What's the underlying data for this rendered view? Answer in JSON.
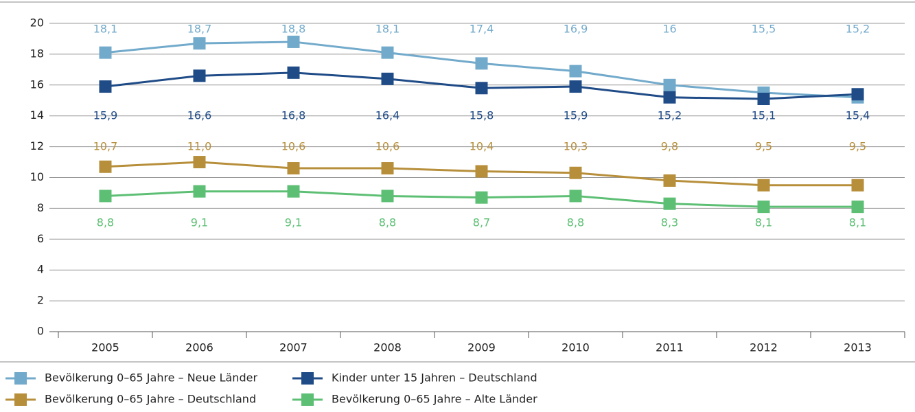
{
  "chart_data": {
    "type": "line",
    "categories": [
      "2005",
      "2006",
      "2007",
      "2008",
      "2009",
      "2010",
      "2011",
      "2012",
      "2013"
    ],
    "series": [
      {
        "name": "Bevölkerung 0–65 Jahre – Neue Länder",
        "color": "#72aacb",
        "values": [
          18.1,
          18.7,
          18.8,
          18.1,
          17.4,
          16.9,
          16,
          15.5,
          15.2
        ],
        "value_labels": [
          "18,1",
          "18,7",
          "18,8",
          "18,1",
          "17,4",
          "16,9",
          "16",
          "15,5",
          "15,2"
        ]
      },
      {
        "name": "Kinder unter 15 Jahren – Deutschland",
        "color": "#1f4b87",
        "values": [
          15.9,
          16.6,
          16.8,
          16.4,
          15.8,
          15.9,
          15.2,
          15.1,
          15.4
        ],
        "value_labels": [
          "15,9",
          "16,6",
          "16,8",
          "16,4",
          "15,8",
          "15,9",
          "15,2",
          "15,1",
          "15,4"
        ]
      },
      {
        "name": "Bevölkerung 0–65 Jahre – Deutschland",
        "color": "#b78f3b",
        "values": [
          10.7,
          11.0,
          10.6,
          10.6,
          10.4,
          10.3,
          9.8,
          9.5,
          9.5
        ],
        "value_labels": [
          "10,7",
          "11,0",
          "10,6",
          "10,6",
          "10,4",
          "10,3",
          "9,8",
          "9,5",
          "9,5"
        ]
      },
      {
        "name": "Bevölkerung 0–65 Jahre – Alte Länder",
        "color": "#5dbf74",
        "values": [
          8.8,
          9.1,
          9.1,
          8.8,
          8.7,
          8.8,
          8.3,
          8.1,
          8.1
        ],
        "value_labels": [
          "8,8",
          "9,1",
          "9,1",
          "8,8",
          "8,7",
          "8,8",
          "8,3",
          "8,1",
          "8,1"
        ]
      }
    ],
    "ylim": [
      0,
      20
    ],
    "yticks": [
      0,
      2,
      4,
      6,
      8,
      10,
      12,
      14,
      16,
      18,
      20
    ],
    "grid": true
  }
}
